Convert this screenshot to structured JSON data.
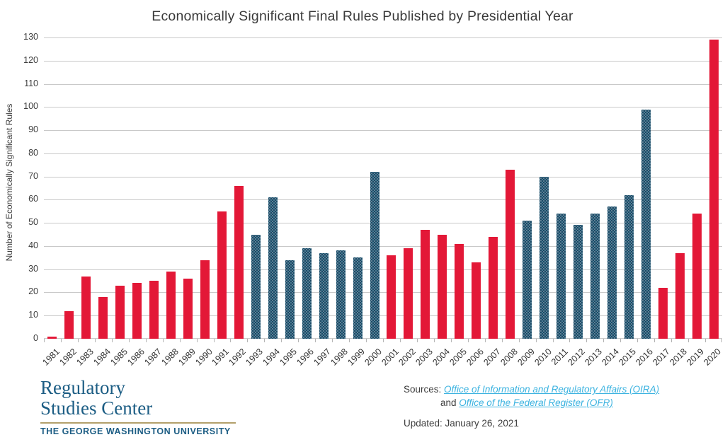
{
  "title": "Economically Significant Final Rules Published by Presidential Year",
  "chart_data": {
    "type": "bar",
    "title": "Economically Significant Final Rules Published by Presidential Year",
    "xlabel": "",
    "ylabel": "Number of Economically Significant Rules",
    "ylim": [
      0,
      130
    ],
    "ytick_step": 10,
    "grid": "horizontal",
    "legend": "none",
    "categories": [
      "1981",
      "1982",
      "1983",
      "1984",
      "1985",
      "1986",
      "1987",
      "1988",
      "1989",
      "1990",
      "1991",
      "1992",
      "1993",
      "1994",
      "1995",
      "1996",
      "1997",
      "1998",
      "1999",
      "2000",
      "2001",
      "2002",
      "2003",
      "2004",
      "2005",
      "2006",
      "2007",
      "2008",
      "2009",
      "2010",
      "2011",
      "2012",
      "2013",
      "2014",
      "2015",
      "2016",
      "2017",
      "2018",
      "2019",
      "2020"
    ],
    "values": [
      1,
      12,
      27,
      18,
      23,
      24,
      25,
      29,
      26,
      34,
      55,
      66,
      45,
      61,
      34,
      39,
      37,
      38,
      35,
      72,
      36,
      39,
      47,
      45,
      41,
      33,
      44,
      73,
      51,
      70,
      54,
      49,
      54,
      57,
      62,
      99,
      22,
      37,
      54,
      129
    ],
    "party_by_year": [
      "republican",
      "republican",
      "republican",
      "republican",
      "republican",
      "republican",
      "republican",
      "republican",
      "republican",
      "republican",
      "republican",
      "republican",
      "democrat",
      "democrat",
      "democrat",
      "democrat",
      "democrat",
      "democrat",
      "democrat",
      "democrat",
      "republican",
      "republican",
      "republican",
      "republican",
      "republican",
      "republican",
      "republican",
      "republican",
      "democrat",
      "democrat",
      "democrat",
      "democrat",
      "democrat",
      "democrat",
      "democrat",
      "democrat",
      "republican",
      "republican",
      "republican",
      "republican"
    ],
    "colors": {
      "republican_red": "#e31837",
      "democrat_blue": "#1a4a66",
      "gridline": "#c9c9c9",
      "axis_text": "#3d3d3d"
    }
  },
  "footer": {
    "logo": {
      "line1": "Regulatory",
      "line2": "Studies Center",
      "line3": "THE GEORGE WASHINGTON UNIVERSITY"
    },
    "sources": {
      "label": "Sources:",
      "link1": "Office of Information and Regulatory Affairs (OIRA)",
      "conjunction": "and",
      "link2": "Office of the Federal Register (OFR)"
    },
    "updated": "Updated: January 26, 2021"
  }
}
